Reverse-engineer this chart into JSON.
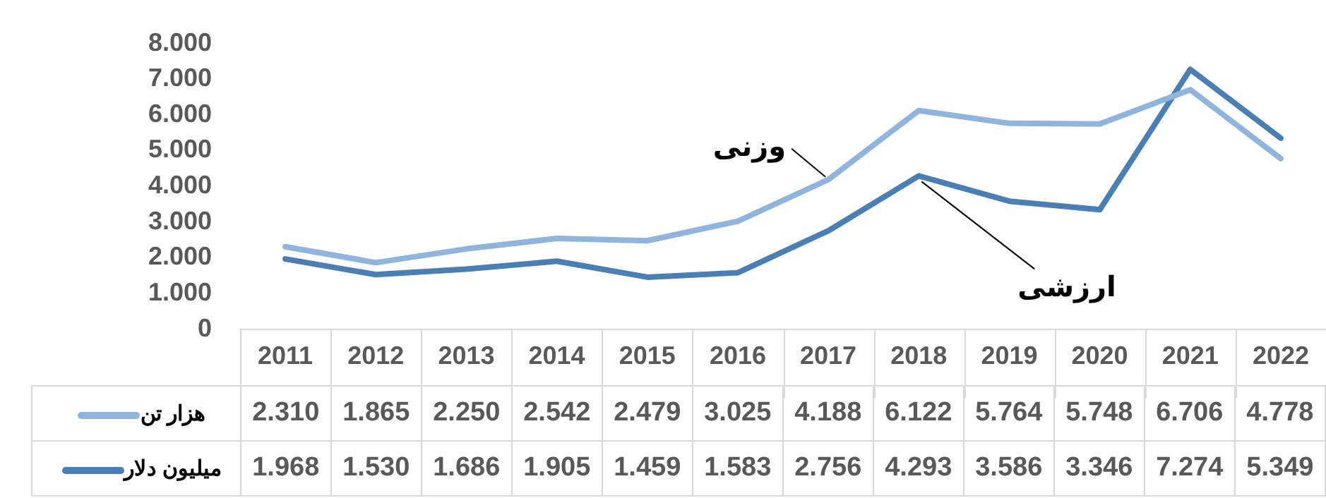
{
  "chart_data": {
    "type": "line",
    "categories": [
      "2011",
      "2012",
      "2013",
      "2014",
      "2015",
      "2016",
      "2017",
      "2018",
      "2019",
      "2020",
      "2021",
      "2022"
    ],
    "series": [
      {
        "name": "هزار تن",
        "color": "#8fb4de",
        "values": [
          2310,
          1865,
          2250,
          2542,
          2479,
          3025,
          4188,
          6122,
          5764,
          5748,
          6706,
          4778
        ],
        "value_labels": [
          "2.310",
          "1.865",
          "2.250",
          "2.542",
          "2.479",
          "3.025",
          "4.188",
          "6.122",
          "5.764",
          "5.748",
          "6.706",
          "4.778"
        ]
      },
      {
        "name": "میلیون دلار",
        "color": "#4a7fb5",
        "values": [
          1968,
          1530,
          1686,
          1905,
          1459,
          1583,
          2756,
          4293,
          3586,
          3346,
          7274,
          5349
        ],
        "value_labels": [
          "1.968",
          "1.530",
          "1.686",
          "1.905",
          "1.459",
          "1.583",
          "2.756",
          "4.293",
          "3.586",
          "3.346",
          "7.274",
          "5.349"
        ]
      }
    ],
    "ylim": [
      0,
      8000
    ],
    "yticks": [
      {
        "value": 0,
        "label": "0"
      },
      {
        "value": 1000,
        "label": "1.000"
      },
      {
        "value": 2000,
        "label": "2.000"
      },
      {
        "value": 3000,
        "label": "3.000"
      },
      {
        "value": 4000,
        "label": "4.000"
      },
      {
        "value": 5000,
        "label": "5.000"
      },
      {
        "value": 6000,
        "label": "6.000"
      },
      {
        "value": 7000,
        "label": "7.000"
      },
      {
        "value": 8000,
        "label": "8.000"
      }
    ],
    "annotations": [
      {
        "text": "وزنی",
        "x": "2017",
        "y": 4188
      },
      {
        "text": "ارزشی",
        "x": "2018",
        "y": 4293
      }
    ],
    "legend": "bottom left",
    "marker": "none",
    "line_style": "solid"
  }
}
